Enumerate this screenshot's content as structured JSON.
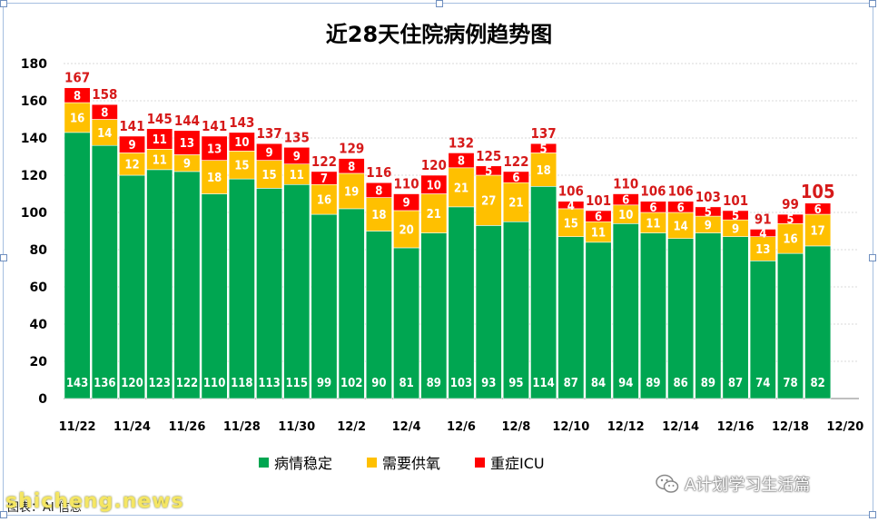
{
  "title": "近28天住院病例趋势图",
  "colors": {
    "stable": "#00a651",
    "oxygen": "#ffc000",
    "icu": "#ff0000",
    "total_label": "#d61a1a"
  },
  "legend": {
    "stable": "病情稳定",
    "oxygen": "需要供氧",
    "icu": "重症ICU"
  },
  "watermark": {
    "text": "A计划学习生活篇",
    "icon": "wechat-icon"
  },
  "source_note": "图表：AI 信息",
  "site_mark": "shicheng.news",
  "chart_data": {
    "type": "bar",
    "stacked": true,
    "title": "近28天住院病例趋势图",
    "categories": [
      "11/22",
      "11/23",
      "11/24",
      "11/25",
      "11/26",
      "11/27",
      "11/28",
      "11/29",
      "11/30",
      "12/1",
      "12/2",
      "12/3",
      "12/4",
      "12/5",
      "12/6",
      "12/7",
      "12/8",
      "12/9",
      "12/10",
      "12/11",
      "12/12",
      "12/13",
      "12/14",
      "12/15",
      "12/16",
      "12/17",
      "12/18",
      "12/19",
      "12/20"
    ],
    "x_tick_labels": [
      "11/22",
      "11/24",
      "11/26",
      "11/28",
      "11/30",
      "12/2",
      "12/4",
      "12/6",
      "12/8",
      "12/10",
      "12/12",
      "12/14",
      "12/16",
      "12/18",
      "12/20"
    ],
    "series": [
      {
        "name": "病情稳定",
        "values": [
          143,
          136,
          120,
          123,
          122,
          110,
          118,
          113,
          115,
          99,
          102,
          90,
          81,
          89,
          103,
          93,
          95,
          114,
          87,
          84,
          94,
          89,
          86,
          89,
          87,
          74,
          78,
          82,
          null
        ]
      },
      {
        "name": "需要供氧",
        "values": [
          16,
          14,
          12,
          11,
          9,
          18,
          15,
          15,
          11,
          16,
          19,
          18,
          20,
          21,
          21,
          27,
          21,
          18,
          15,
          11,
          10,
          11,
          14,
          9,
          9,
          13,
          16,
          17,
          null
        ]
      },
      {
        "name": "重症ICU",
        "values": [
          8,
          8,
          9,
          11,
          13,
          13,
          10,
          9,
          9,
          7,
          8,
          8,
          9,
          10,
          8,
          5,
          6,
          5,
          4,
          6,
          6,
          6,
          6,
          5,
          5,
          4,
          5,
          6,
          null
        ]
      }
    ],
    "totals": [
      167,
      158,
      141,
      145,
      144,
      141,
      143,
      137,
      135,
      122,
      129,
      116,
      110,
      120,
      132,
      125,
      122,
      137,
      106,
      101,
      110,
      106,
      106,
      103,
      101,
      91,
      99,
      105,
      null
    ],
    "ylim": [
      0,
      180
    ],
    "yticks": [
      0,
      20,
      40,
      60,
      80,
      100,
      120,
      140,
      160,
      180
    ],
    "grid": true,
    "legend_position": "bottom"
  }
}
